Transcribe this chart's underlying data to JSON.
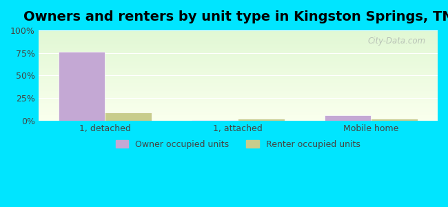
{
  "title": "Owners and renters by unit type in Kingston Springs, TN",
  "categories": [
    "1, detached",
    "1, attached",
    "Mobile home"
  ],
  "owner_values": [
    76,
    1,
    6
  ],
  "renter_values": [
    9,
    2,
    2
  ],
  "owner_color": "#c4a8d4",
  "renter_color": "#c8cc8c",
  "yticks": [
    0,
    25,
    50,
    75,
    100
  ],
  "ytick_labels": [
    "0%",
    "25%",
    "50%",
    "75%",
    "100%"
  ],
  "ylim": [
    0,
    100
  ],
  "bar_width": 0.35,
  "outer_bg": "#00e5ff",
  "title_fontsize": 14,
  "legend_owner": "Owner occupied units",
  "legend_renter": "Renter occupied units",
  "watermark": "City-Data.com"
}
